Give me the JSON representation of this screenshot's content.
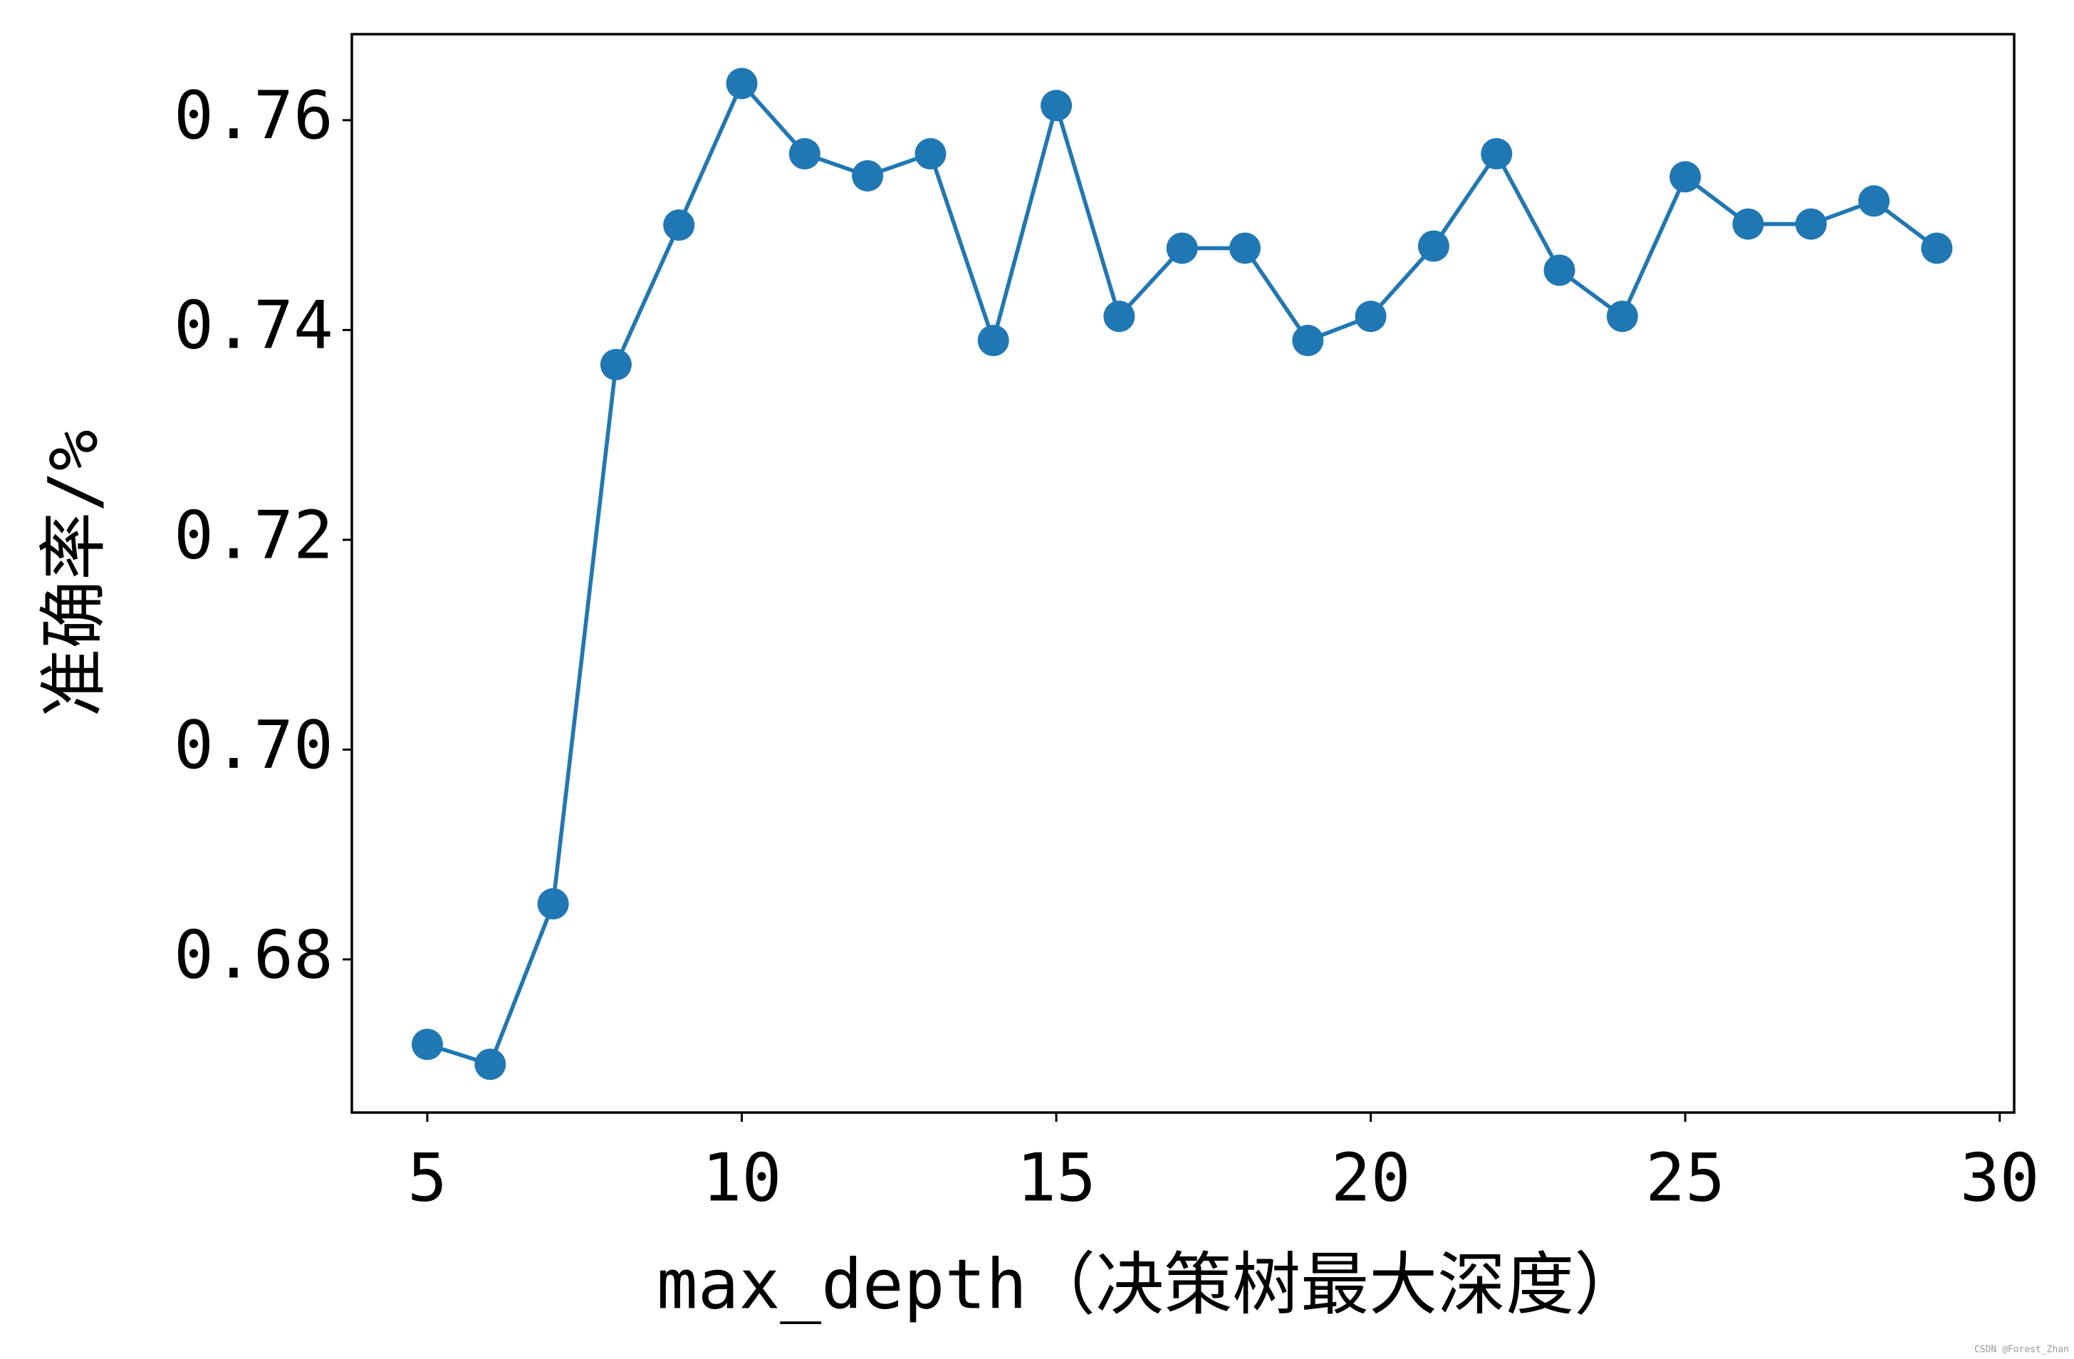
{
  "chart_data": {
    "type": "line",
    "x": [
      5,
      6,
      7,
      8,
      9,
      10,
      11,
      12,
      13,
      14,
      15,
      16,
      17,
      18,
      19,
      20,
      21,
      22,
      23,
      24,
      25,
      26,
      27,
      28,
      29
    ],
    "series": [
      {
        "color": "#1f77b4",
        "values": [
          0.6719,
          0.67,
          0.6853,
          0.7367,
          0.75,
          0.7635,
          0.7568,
          0.7547,
          0.7568,
          0.739,
          0.7614,
          0.7413,
          0.7478,
          0.7478,
          0.739,
          0.7413,
          0.748,
          0.7568,
          0.7457,
          0.7413,
          0.7546,
          0.7501,
          0.7501,
          0.7523,
          0.7478
        ]
      }
    ],
    "xlabel": "max_depth（决策树最大深度）",
    "ylabel": "准确率/%",
    "xlim": [
      3.8,
      30.23
    ],
    "ylim": [
      0.6654,
      0.7682
    ],
    "xticks": [
      5,
      10,
      15,
      20,
      25,
      30
    ],
    "yticks": [
      0.68,
      {
        "value": 0.7,
        "label": "0.70"
      },
      0.72,
      0.74,
      0.76
    ],
    "grid": false,
    "watermark": "CSDN @Forest_Zhan"
  }
}
